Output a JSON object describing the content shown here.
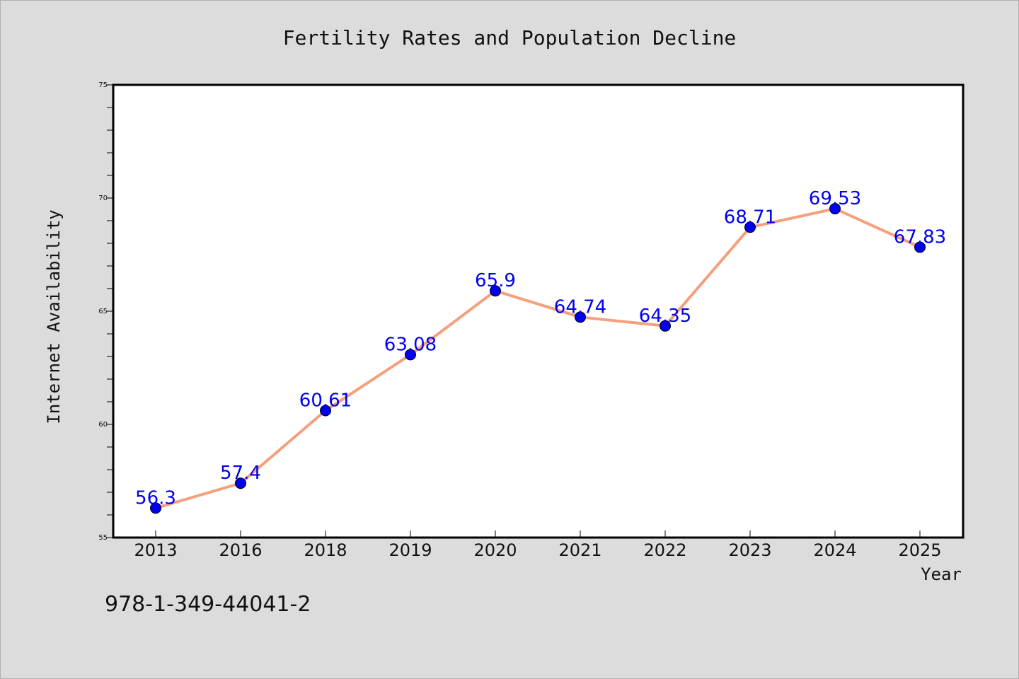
{
  "chart_data": {
    "type": "line",
    "title": "Fertility Rates and Population Decline",
    "xlabel": "Year",
    "ylabel": "Internet Availability",
    "categories": [
      "2013",
      "2016",
      "2018",
      "2019",
      "2020",
      "2021",
      "2022",
      "2023",
      "2024",
      "2025"
    ],
    "series": [
      {
        "values": [
          56.3,
          57.4,
          60.61,
          63.08,
          65.9,
          64.74,
          64.35,
          68.71,
          69.53,
          67.83
        ],
        "data_labels": [
          "56.3",
          "57.4",
          "60.61",
          "63.08",
          "65.9",
          "64.74",
          "64.35",
          "68.71",
          "69.53",
          "67.83"
        ],
        "line_color": "#f4a07c",
        "marker_color": "#0000ee"
      }
    ],
    "ylim": [
      55,
      75
    ],
    "yticks": [
      55,
      60,
      65,
      70,
      75
    ],
    "ytick_labels": [
      "55",
      "60",
      "65",
      "70",
      "75"
    ],
    "grid": false,
    "legend": "none"
  },
  "footer": {
    "isbn": "978-1-349-44041-2"
  },
  "colors": {
    "background": "#dcdcdc",
    "plot_background": "#ffffff",
    "label_color": "#0000ee"
  }
}
